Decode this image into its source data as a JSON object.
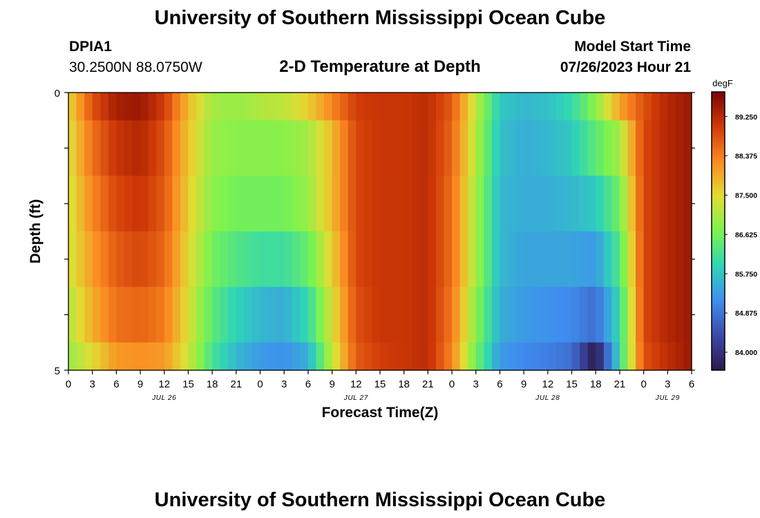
{
  "header": {
    "title": "University of Southern Mississippi Ocean Cube",
    "station": "DPIA1",
    "coords": "30.2500N  88.0750W",
    "plot_title": "2-D Temperature at Depth",
    "model_start_label": "Model Start Time",
    "model_start_value": "07/26/2023 Hour 21"
  },
  "footer": {
    "title": "University of Southern Mississippi Ocean Cube"
  },
  "chart_data": {
    "type": "heatmap",
    "title": "2-D Temperature at Depth",
    "xlabel": "Forecast Time(Z)",
    "ylabel": "Depth (ft)",
    "ylim": [
      0,
      5
    ],
    "y_tick_labels": [
      "0",
      "5"
    ],
    "x_tick_labels": [
      "0",
      "3",
      "6",
      "9",
      "12",
      "15",
      "18",
      "21",
      "0",
      "3",
      "6",
      "9",
      "12",
      "15",
      "18",
      "21",
      "0",
      "3",
      "6",
      "9",
      "12",
      "15",
      "18",
      "21",
      "0",
      "3",
      "6"
    ],
    "date_labels": [
      {
        "hour": 12,
        "label": "JUL 26"
      },
      {
        "hour": 36,
        "label": "JUL 27"
      },
      {
        "hour": 60,
        "label": "JUL 28"
      },
      {
        "hour": 75,
        "label": "JUL 29"
      }
    ],
    "x_range_hours": [
      0,
      78
    ],
    "depth_layers_ft": [
      [
        0,
        0.5
      ],
      [
        0.5,
        1.5
      ],
      [
        1.5,
        2.5
      ],
      [
        2.5,
        3.5
      ],
      [
        3.5,
        4.5
      ],
      [
        4.5,
        5
      ]
    ],
    "time_hours": [
      0,
      3,
      6,
      9,
      12,
      15,
      18,
      21,
      24,
      27,
      30,
      33,
      36,
      39,
      42,
      45,
      48,
      51,
      54,
      57,
      60,
      63,
      66,
      69,
      72,
      75,
      78
    ],
    "temperature_degF": [
      [
        87.5,
        88.8,
        89.4,
        89.5,
        89.0,
        87.8,
        87.0,
        86.9,
        87.1,
        87.2,
        87.6,
        88.3,
        89.0,
        89.1,
        89.1,
        89.2,
        88.7,
        87.2,
        85.8,
        85.6,
        85.7,
        86.0,
        86.8,
        88.0,
        88.8,
        89.3,
        89.5
      ],
      [
        87.4,
        88.5,
        89.1,
        89.3,
        88.8,
        87.7,
        86.9,
        86.8,
        86.8,
        86.8,
        87.0,
        87.8,
        88.9,
        89.1,
        89.1,
        89.2,
        88.6,
        87.1,
        85.7,
        85.5,
        85.6,
        85.8,
        86.4,
        87.0,
        88.9,
        89.3,
        89.5
      ],
      [
        87.3,
        88.3,
        88.9,
        89.1,
        88.7,
        87.6,
        86.8,
        86.6,
        86.6,
        86.6,
        86.9,
        87.8,
        88.9,
        89.1,
        89.1,
        89.2,
        88.5,
        87.0,
        85.6,
        85.5,
        85.5,
        85.6,
        85.8,
        86.6,
        88.9,
        89.3,
        89.5
      ],
      [
        87.3,
        88.1,
        88.7,
        88.9,
        88.6,
        87.5,
        86.6,
        86.3,
        86.1,
        86.1,
        86.5,
        87.6,
        88.9,
        89.1,
        89.1,
        89.2,
        88.5,
        87.0,
        85.6,
        85.4,
        85.4,
        85.4,
        85.3,
        86.3,
        88.9,
        89.3,
        89.5
      ],
      [
        87.1,
        87.9,
        88.5,
        88.6,
        88.4,
        87.4,
        86.4,
        85.9,
        85.6,
        85.5,
        86.0,
        87.4,
        88.8,
        89.1,
        89.1,
        89.2,
        88.4,
        86.8,
        85.5,
        85.3,
        85.2,
        85.1,
        84.8,
        86.0,
        88.9,
        89.3,
        89.5
      ],
      [
        86.9,
        87.5,
        88.1,
        88.2,
        88.1,
        87.3,
        86.2,
        85.6,
        85.3,
        85.2,
        85.5,
        87.2,
        88.7,
        89.0,
        89.1,
        89.2,
        88.3,
        86.6,
        85.3,
        85.1,
        85.0,
        84.8,
        83.6,
        86.0,
        88.8,
        89.2,
        89.5
      ]
    ],
    "colorbar": {
      "label": "degF",
      "tick_labels": [
        "89.250",
        "88.375",
        "87.500",
        "86.625",
        "85.750",
        "84.875",
        "84.000"
      ],
      "ticks": [
        89.25,
        88.375,
        87.5,
        86.625,
        85.75,
        84.875,
        84.0
      ],
      "range": [
        83.6,
        89.8
      ],
      "colors": [
        "#2a1a48",
        "#3c4aa8",
        "#3f8df0",
        "#2fd5b6",
        "#7cf34e",
        "#e2dc33",
        "#fb8a22",
        "#d03a07",
        "#7a0403"
      ]
    }
  }
}
